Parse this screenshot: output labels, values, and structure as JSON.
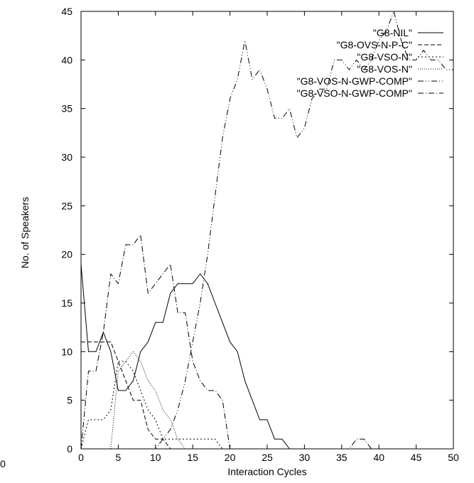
{
  "chart_data": {
    "type": "line",
    "xlabel": "Interaction Cycles",
    "ylabel": "No. of Speakers",
    "xlim": [
      0,
      50
    ],
    "ylim": [
      0,
      45
    ],
    "xticks": [
      0,
      5,
      10,
      15,
      20,
      25,
      30,
      35,
      40,
      45,
      50
    ],
    "yticks": [
      0,
      5,
      10,
      15,
      20,
      25,
      30,
      35,
      40,
      45
    ],
    "stray_tick_label": "0",
    "grid": false,
    "legend_position": "top-right",
    "series": [
      {
        "name": "\"G8-NIL\"",
        "dash": "solid",
        "points": [
          [
            0,
            19
          ],
          [
            1,
            10
          ],
          [
            2,
            10
          ],
          [
            3,
            12
          ],
          [
            4,
            10
          ],
          [
            5,
            6
          ],
          [
            6,
            6
          ],
          [
            7,
            7
          ],
          [
            8,
            10
          ],
          [
            9,
            11
          ],
          [
            10,
            13
          ],
          [
            11,
            13
          ],
          [
            12,
            16
          ],
          [
            13,
            17
          ],
          [
            14,
            17
          ],
          [
            15,
            17
          ],
          [
            16,
            18
          ],
          [
            17,
            17
          ],
          [
            18,
            15
          ],
          [
            19,
            13
          ],
          [
            20,
            11
          ],
          [
            21,
            10
          ],
          [
            22,
            7
          ],
          [
            23,
            5
          ],
          [
            24,
            3
          ],
          [
            25,
            3
          ],
          [
            26,
            1
          ],
          [
            27,
            1
          ],
          [
            28,
            0
          ],
          [
            50,
            0
          ]
        ]
      },
      {
        "name": "\"G8-OVS-N-P-C\"",
        "dash": "dashed",
        "points": [
          [
            0,
            11
          ],
          [
            1,
            11
          ],
          [
            2,
            11
          ],
          [
            3,
            11
          ],
          [
            4,
            11
          ],
          [
            5,
            9
          ],
          [
            6,
            7
          ],
          [
            7,
            5
          ],
          [
            8,
            5
          ],
          [
            9,
            2
          ],
          [
            10,
            1
          ],
          [
            11,
            1
          ],
          [
            12,
            0
          ],
          [
            50,
            0
          ]
        ]
      },
      {
        "name": "\"G8-VSO-N\"",
        "dash": "dotted",
        "points": [
          [
            0,
            0
          ],
          [
            1,
            3
          ],
          [
            2,
            3
          ],
          [
            3,
            3
          ],
          [
            4,
            4
          ],
          [
            5,
            9
          ],
          [
            6,
            9
          ],
          [
            7,
            8
          ],
          [
            8,
            6
          ],
          [
            9,
            4
          ],
          [
            10,
            3
          ],
          [
            11,
            1
          ],
          [
            12,
            1
          ],
          [
            13,
            1
          ],
          [
            14,
            1
          ],
          [
            15,
            1
          ],
          [
            16,
            1
          ],
          [
            17,
            1
          ],
          [
            18,
            1
          ],
          [
            19,
            0
          ],
          [
            50,
            0
          ]
        ]
      },
      {
        "name": "\"G8-VOS-N\"",
        "dash": "fine-dotted",
        "points": [
          [
            0,
            0
          ],
          [
            1,
            0
          ],
          [
            2,
            0
          ],
          [
            3,
            0
          ],
          [
            4,
            0
          ],
          [
            5,
            8
          ],
          [
            6,
            9
          ],
          [
            7,
            10
          ],
          [
            8,
            9
          ],
          [
            9,
            7
          ],
          [
            10,
            6
          ],
          [
            11,
            4
          ],
          [
            12,
            3
          ],
          [
            13,
            1
          ],
          [
            14,
            0
          ],
          [
            50,
            0
          ]
        ]
      },
      {
        "name": "\"G8-VOS-N-GWP-COMP\"",
        "dash": "dash-dot-dot",
        "points": [
          [
            0,
            0
          ],
          [
            10,
            0
          ],
          [
            11,
            1
          ],
          [
            12,
            2
          ],
          [
            13,
            4
          ],
          [
            14,
            7
          ],
          [
            15,
            11
          ],
          [
            16,
            15
          ],
          [
            17,
            20
          ],
          [
            18,
            26
          ],
          [
            19,
            32
          ],
          [
            20,
            36
          ],
          [
            21,
            38
          ],
          [
            22,
            42
          ],
          [
            23,
            38
          ],
          [
            24,
            39
          ],
          [
            25,
            37
          ],
          [
            26,
            34
          ],
          [
            27,
            34
          ],
          [
            28,
            35
          ],
          [
            29,
            32
          ],
          [
            30,
            33
          ],
          [
            31,
            36
          ],
          [
            32,
            37
          ],
          [
            33,
            37
          ],
          [
            34,
            40
          ],
          [
            35,
            40
          ],
          [
            36,
            39
          ],
          [
            37,
            40
          ],
          [
            38,
            39
          ],
          [
            39,
            40
          ],
          [
            40,
            42
          ],
          [
            41,
            43
          ],
          [
            42,
            45
          ],
          [
            43,
            42
          ],
          [
            44,
            40
          ],
          [
            45,
            40
          ],
          [
            46,
            41
          ],
          [
            47,
            40
          ],
          [
            48,
            40
          ],
          [
            49,
            39
          ],
          [
            50,
            39
          ]
        ]
      },
      {
        "name": "\"G8-VSO-N-GWP-COMP\"",
        "dash": "dash-dot",
        "points": [
          [
            0,
            0
          ],
          [
            1,
            8
          ],
          [
            2,
            8
          ],
          [
            3,
            12
          ],
          [
            4,
            18
          ],
          [
            5,
            17
          ],
          [
            6,
            21
          ],
          [
            7,
            21
          ],
          [
            8,
            22
          ],
          [
            9,
            16
          ],
          [
            10,
            17
          ],
          [
            11,
            18
          ],
          [
            12,
            19
          ],
          [
            13,
            14
          ],
          [
            14,
            14
          ],
          [
            15,
            9
          ],
          [
            16,
            7
          ],
          [
            17,
            6
          ],
          [
            18,
            6
          ],
          [
            19,
            5
          ],
          [
            20,
            0
          ],
          [
            36,
            0
          ],
          [
            37,
            1
          ],
          [
            38,
            1
          ],
          [
            39,
            0
          ],
          [
            50,
            0
          ]
        ]
      }
    ]
  }
}
